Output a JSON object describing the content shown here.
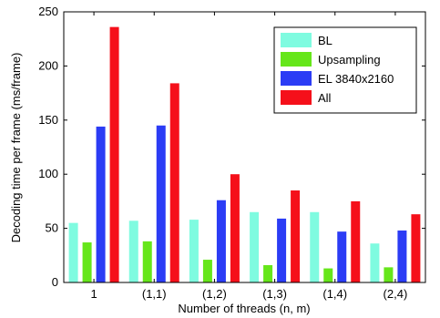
{
  "chart_data": {
    "type": "bar",
    "title": "",
    "xlabel": "Number of threads (n, m)",
    "ylabel": "Decoding time per frame (ms/frame)",
    "categories": [
      "1",
      "(1,1)",
      "(1,2)",
      "(1,3)",
      "(1,4)",
      "(2,4)"
    ],
    "ylim": [
      0,
      250
    ],
    "yticks": [
      0,
      50,
      100,
      150,
      200,
      250
    ],
    "grid": false,
    "legend_position": "top-right",
    "series": [
      {
        "name": "BL",
        "color": "#7ffbe0",
        "values": [
          55,
          57,
          58,
          65,
          65,
          36
        ]
      },
      {
        "name": "Upsampling",
        "color": "#66e61a",
        "values": [
          37,
          38,
          21,
          16,
          13,
          14
        ]
      },
      {
        "name": "EL 3840x2160",
        "color": "#2b3cf5",
        "values": [
          144,
          145,
          76,
          59,
          47,
          48
        ]
      },
      {
        "name": "All",
        "color": "#f5101a",
        "values": [
          236,
          184,
          100,
          85,
          75,
          63
        ]
      }
    ]
  }
}
